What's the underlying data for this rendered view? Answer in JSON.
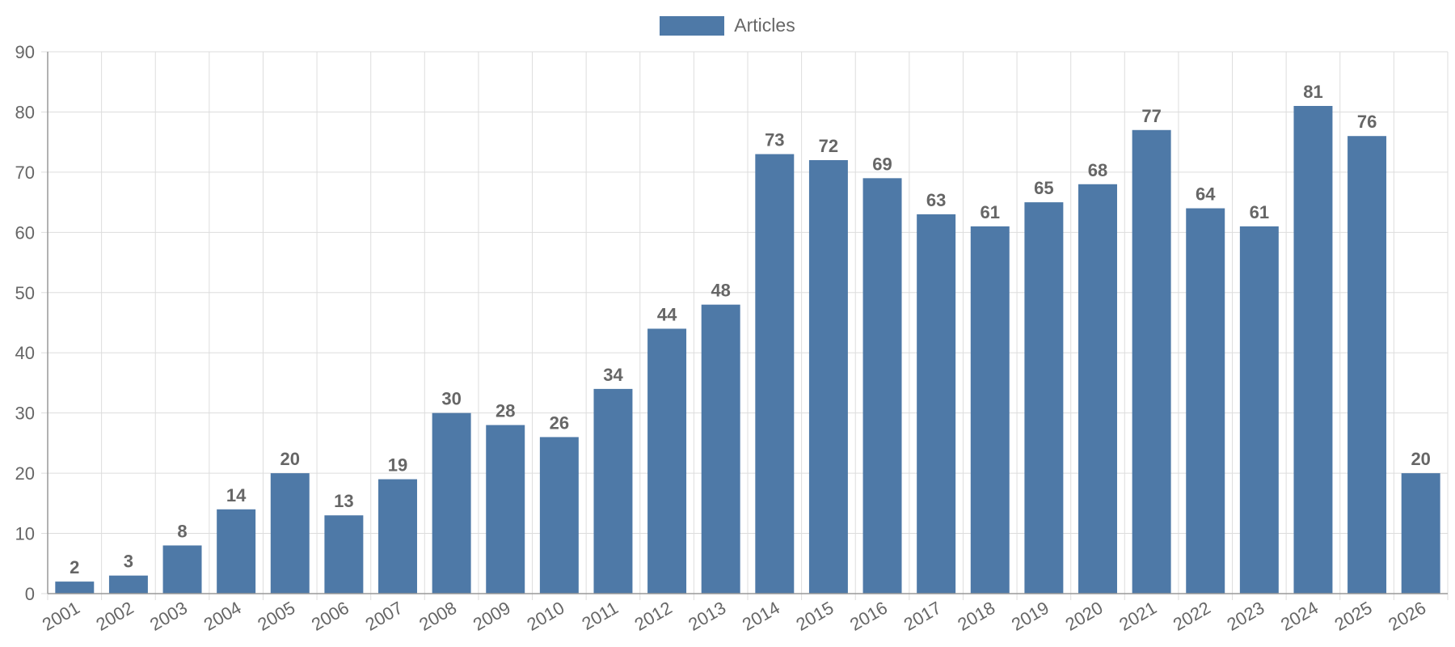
{
  "chart_data": {
    "type": "bar",
    "categories": [
      "2001",
      "2002",
      "2003",
      "2004",
      "2005",
      "2006",
      "2007",
      "2008",
      "2009",
      "2010",
      "2011",
      "2012",
      "2013",
      "2014",
      "2015",
      "2016",
      "2017",
      "2018",
      "2019",
      "2020",
      "2021",
      "2022",
      "2023",
      "2024",
      "2025",
      "2026"
    ],
    "series": [
      {
        "name": "Articles",
        "values": [
          2,
          3,
          8,
          14,
          20,
          13,
          19,
          30,
          28,
          26,
          34,
          44,
          48,
          73,
          72,
          69,
          63,
          61,
          65,
          68,
          77,
          64,
          61,
          81,
          76,
          20
        ]
      }
    ],
    "title": "",
    "xlabel": "",
    "ylabel": "",
    "ylim": [
      0,
      90
    ],
    "yticks": [
      0,
      10,
      20,
      30,
      40,
      50,
      60,
      70,
      80,
      90
    ],
    "grid": true,
    "legend_position": "top-center",
    "data_labels": true,
    "colors": {
      "bar": "#4e79a7",
      "grid": "#dddddd",
      "axis": "#999999",
      "text": "#666666"
    }
  }
}
